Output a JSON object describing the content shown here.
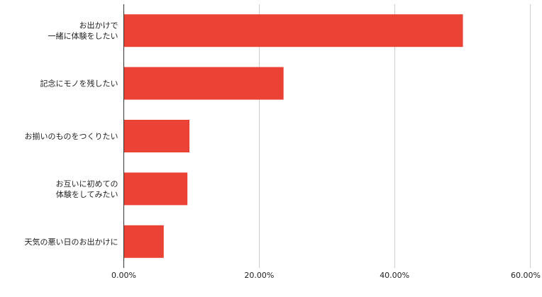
{
  "chart_data": {
    "type": "bar",
    "orientation": "horizontal",
    "categories": [
      "お出かけで\n一緒に体験をしたい",
      "記念にモノを残したい",
      "お揃いのものをつくりたい",
      "お互いに初めての\n体験をしてみたい",
      "天気の悪い日のお出かけに"
    ],
    "values": [
      50.1,
      23.6,
      9.7,
      9.4,
      5.9
    ],
    "x_ticks": [
      "0.00%",
      "20.00%",
      "40.00%",
      "60.00%"
    ],
    "x_tick_values": [
      0,
      20,
      40,
      60
    ],
    "xlim": [
      0,
      60
    ],
    "title": "",
    "xlabel": "",
    "ylabel": "",
    "grid": "vertical",
    "legend": "none",
    "bar_color": "#ea4335"
  }
}
